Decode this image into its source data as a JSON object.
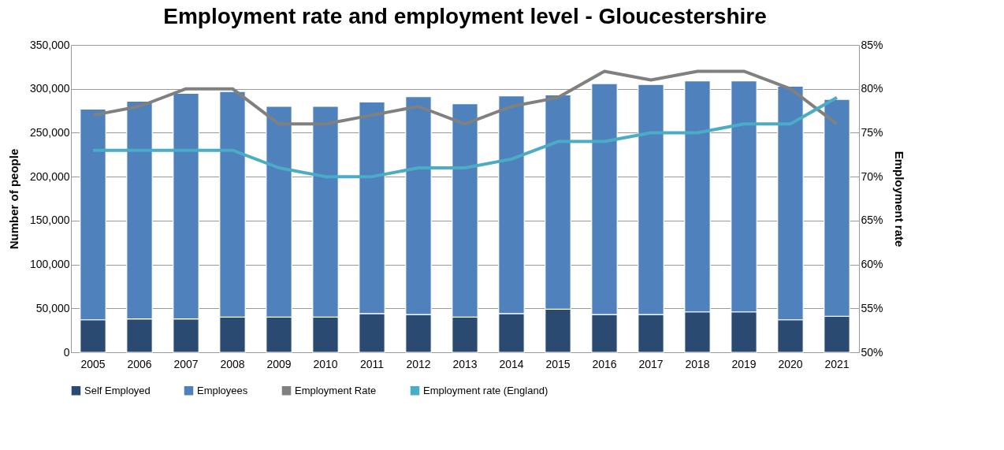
{
  "chart_data": {
    "type": "bar",
    "title": "Employment rate and employment level - Gloucestershire",
    "ylabel": "Number of people",
    "y2label": "Employment rate",
    "categories": [
      "2005",
      "2006",
      "2007",
      "2008",
      "2009",
      "2010",
      "2011",
      "2012",
      "2013",
      "2014",
      "2015",
      "2016",
      "2017",
      "2018",
      "2019",
      "2020",
      "2021"
    ],
    "stacked": true,
    "series": [
      {
        "name": "Self Employed",
        "color": "#2a4a72",
        "values": [
          37000,
          38000,
          38000,
          40000,
          40000,
          40000,
          44000,
          43000,
          40000,
          44000,
          49000,
          43000,
          43000,
          46000,
          46000,
          37000,
          41000
        ]
      },
      {
        "name": "Employees",
        "color": "#4f81bd",
        "values": [
          240000,
          248000,
          257000,
          257000,
          240000,
          240000,
          241000,
          248000,
          243000,
          248000,
          244000,
          263000,
          262000,
          263000,
          263000,
          266000,
          247000
        ]
      },
      {
        "name": "Employment Rate",
        "type": "line",
        "axis": "y2",
        "color": "#808080",
        "values": [
          77,
          78,
          80,
          80,
          76,
          76,
          77,
          78,
          76,
          78,
          79,
          82,
          81,
          82,
          82,
          80,
          76
        ]
      },
      {
        "name": "Employment rate (England)",
        "type": "line",
        "axis": "y2",
        "color": "#4bacc6",
        "values": [
          73,
          73,
          73,
          73,
          71,
          70,
          70,
          71,
          71,
          72,
          74,
          74,
          75,
          75,
          76,
          76,
          79
        ]
      }
    ],
    "ylim": [
      0,
      350000
    ],
    "yticks": [
      0,
      {
        "value": 50000,
        "label": "50,000"
      },
      {
        "value": 100000,
        "label": "100,000"
      },
      {
        "value": 150000,
        "label": "150,000"
      },
      {
        "value": 200000,
        "label": "200,000"
      },
      {
        "value": 250000,
        "label": "250,000"
      },
      {
        "value": 300000,
        "label": "300,000"
      },
      {
        "value": 350000,
        "label": "350,000"
      }
    ],
    "y2lim": [
      50,
      85
    ],
    "y2ticks": [
      {
        "value": 50,
        "label": "50%"
      },
      {
        "value": 55,
        "label": "55%"
      },
      {
        "value": 60,
        "label": "60%"
      },
      {
        "value": 65,
        "label": "65%"
      },
      {
        "value": 70,
        "label": "70%"
      },
      {
        "value": 75,
        "label": "75%"
      },
      {
        "value": 80,
        "label": "80%"
      },
      {
        "value": 85,
        "label": "85%"
      }
    ],
    "grid": "y",
    "legend": "bottom",
    "line_style": "solid",
    "marker": "none"
  }
}
